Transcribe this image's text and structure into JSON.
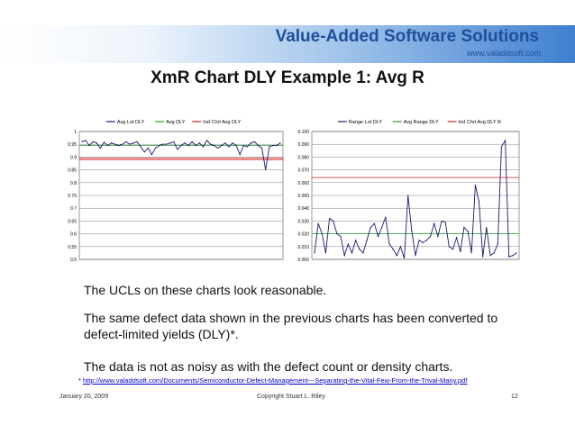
{
  "brand": {
    "title": "Value-Added Software Solutions",
    "url": "www.valaddsoft.com"
  },
  "slide": {
    "title": "XmR Chart DLY Example 1:  Avg R"
  },
  "text": {
    "p1": "The UCLs on these charts look reasonable.",
    "p2": "The same defect data shown in the previous charts has been converted to defect-limited yields (DLY)*.",
    "p3": "The data is not as noisy as with the defect count or density charts.",
    "footnote_mark": "*",
    "footnote_link": "http://www.valaddsoft.com/Documents/Semiconductor-Defect-Management---Separating-the-Vital-Few-From-the-Trival-Many.pdf"
  },
  "footer": {
    "date": "January 20, 2009",
    "copyright": "Copyright   Stuart L. Riley",
    "page": "12"
  },
  "colors": {
    "series": "#1a1a6e",
    "avg": "#2e9a2e",
    "limit": "#d42020",
    "grid": "#808080",
    "border": "#555555"
  },
  "chart_data": [
    {
      "type": "line",
      "legend": [
        "Avg Lot DLY",
        "Avg DLY",
        "Ind Chrt Avg DLY"
      ],
      "legend_position": "top",
      "ylim": [
        0.5,
        1.0
      ],
      "yticks": [
        "1",
        "0.95",
        "0.9",
        "0.85",
        "0.8",
        "0.75",
        "0.7",
        "0.65",
        "0.6",
        "0.55",
        "0.5"
      ],
      "grid": true,
      "series": [
        {
          "name": "Avg Lot DLY",
          "values": [
            0.96,
            0.965,
            0.945,
            0.96,
            0.955,
            0.935,
            0.958,
            0.945,
            0.955,
            0.95,
            0.945,
            0.95,
            0.96,
            0.95,
            0.955,
            0.96,
            0.94,
            0.92,
            0.935,
            0.91,
            0.935,
            0.945,
            0.95,
            0.95,
            0.955,
            0.96,
            0.93,
            0.945,
            0.955,
            0.945,
            0.96,
            0.945,
            0.955,
            0.94,
            0.965,
            0.95,
            0.945,
            0.935,
            0.945,
            0.955,
            0.94,
            0.955,
            0.945,
            0.91,
            0.945,
            0.94,
            0.955,
            0.96,
            0.945,
            0.935,
            0.85,
            0.94,
            0.945,
            0.945,
            0.955
          ]
        },
        {
          "name": "Avg DLY",
          "values": [
            0.945
          ]
        },
        {
          "name": "Ind Chrt Avg DLY",
          "values": [
            0.895,
            0.89
          ]
        }
      ]
    },
    {
      "type": "line",
      "legend": [
        "Range Lot DLY",
        "Avg Range DLY",
        "Ind Chrt Avg DLY R"
      ],
      "legend_position": "top",
      "ylim": [
        0.0,
        0.1
      ],
      "yticks": [
        "0.100",
        "0.090",
        "0.080",
        "0.070",
        "0.060",
        "0.050",
        "0.040",
        "0.030",
        "0.020",
        "0.010",
        "0.000"
      ],
      "grid": true,
      "series": [
        {
          "name": "Range Lot DLY",
          "values": [
            0.005,
            0.028,
            0.02,
            0.005,
            0.032,
            0.03,
            0.02,
            0.018,
            0.003,
            0.012,
            0.005,
            0.015,
            0.008,
            0.005,
            0.015,
            0.025,
            0.028,
            0.018,
            0.025,
            0.033,
            0.012,
            0.008,
            0.003,
            0.01,
            0.001,
            0.05,
            0.022,
            0.003,
            0.015,
            0.013,
            0.015,
            0.018,
            0.028,
            0.018,
            0.03,
            0.029,
            0.01,
            0.008,
            0.017,
            0.006,
            0.025,
            0.022,
            0.005,
            0.058,
            0.045,
            0.002,
            0.025,
            0.003,
            0.005,
            0.012,
            0.088,
            0.093,
            0.002,
            0.003,
            0.005
          ]
        },
        {
          "name": "Avg Range DLY",
          "values": [
            0.02
          ]
        },
        {
          "name": "Ind Chrt Avg DLY R",
          "values": [
            0.064
          ]
        }
      ]
    }
  ]
}
